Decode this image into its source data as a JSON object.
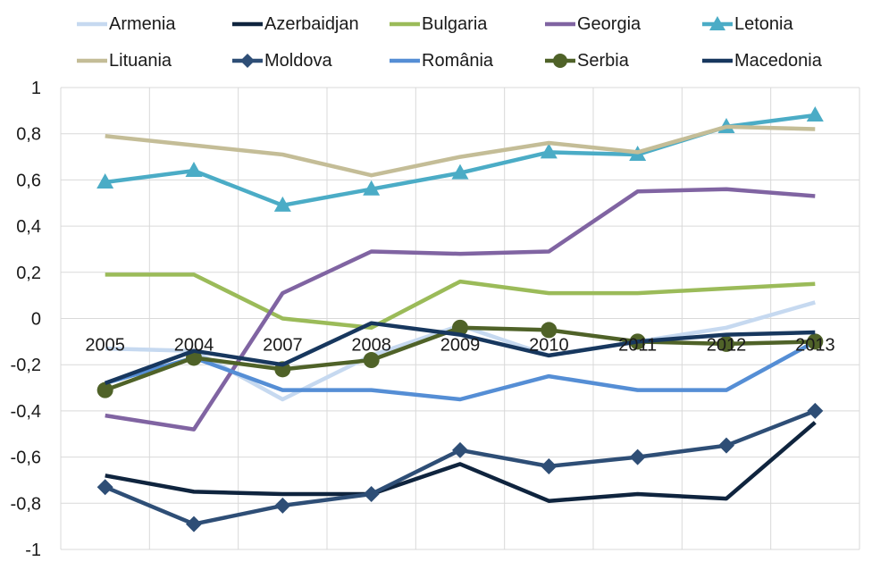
{
  "chart_data": {
    "type": "line",
    "x": [
      "2005",
      "2004",
      "2007",
      "2008",
      "2009",
      "2010",
      "2011",
      "2012",
      "2013"
    ],
    "ylim": [
      -1,
      1
    ],
    "yticks": [
      -1,
      -0.8,
      -0.6,
      -0.4,
      -0.2,
      0,
      0.2,
      0.4,
      0.6,
      0.8,
      1
    ],
    "ytick_labels": [
      "-1",
      "-0,8",
      "-0,6",
      "-0,4",
      "-0,2",
      "0",
      "0,2",
      "0,4",
      "0,6",
      "0,8",
      "1"
    ],
    "grid": true,
    "legend_position": "top",
    "series": [
      {
        "name": "Armenia",
        "color": "#c6d9f0",
        "marker": "none",
        "values": [
          -0.13,
          -0.14,
          -0.35,
          -0.16,
          -0.03,
          -0.16,
          -0.1,
          -0.04,
          0.07
        ]
      },
      {
        "name": "Azerbaidjan",
        "color": "#0f243e",
        "marker": "none",
        "values": [
          -0.68,
          -0.75,
          -0.76,
          -0.76,
          -0.63,
          -0.79,
          -0.76,
          -0.78,
          -0.45
        ]
      },
      {
        "name": "Bulgaria",
        "color": "#9bbb59",
        "marker": "none",
        "values": [
          0.19,
          0.19,
          0.0,
          -0.04,
          0.16,
          0.11,
          0.11,
          0.13,
          0.15
        ]
      },
      {
        "name": "Georgia",
        "color": "#8064a2",
        "marker": "none",
        "values": [
          -0.42,
          -0.48,
          0.11,
          0.29,
          0.28,
          0.29,
          0.55,
          0.56,
          0.53
        ]
      },
      {
        "name": "Letonia",
        "color": "#4bacc6",
        "marker": "triangle",
        "values": [
          0.59,
          0.64,
          0.49,
          0.56,
          0.63,
          0.72,
          0.71,
          0.83,
          0.88
        ]
      },
      {
        "name": "Lituania",
        "color": "#c4bd97",
        "marker": "none",
        "values": [
          0.79,
          0.75,
          0.71,
          0.62,
          0.7,
          0.76,
          0.72,
          0.83,
          0.82
        ]
      },
      {
        "name": "Moldova",
        "color": "#2e4e76",
        "marker": "diamond",
        "values": [
          -0.73,
          -0.89,
          -0.81,
          -0.76,
          -0.57,
          -0.64,
          -0.6,
          -0.55,
          -0.4
        ]
      },
      {
        "name": "România",
        "color": "#558ed5",
        "marker": "none",
        "values": [
          -0.28,
          -0.17,
          -0.31,
          -0.31,
          -0.35,
          -0.25,
          -0.31,
          -0.31,
          -0.1
        ]
      },
      {
        "name": "Serbia",
        "color": "#4f6228",
        "marker": "circle",
        "values": [
          -0.31,
          -0.17,
          -0.22,
          -0.18,
          -0.04,
          -0.05,
          -0.1,
          -0.11,
          -0.1
        ]
      },
      {
        "name": "Macedonia",
        "color": "#17375e",
        "marker": "none",
        "values": [
          -0.28,
          -0.14,
          -0.2,
          -0.02,
          -0.07,
          -0.16,
          -0.1,
          -0.07,
          -0.06
        ]
      }
    ]
  }
}
